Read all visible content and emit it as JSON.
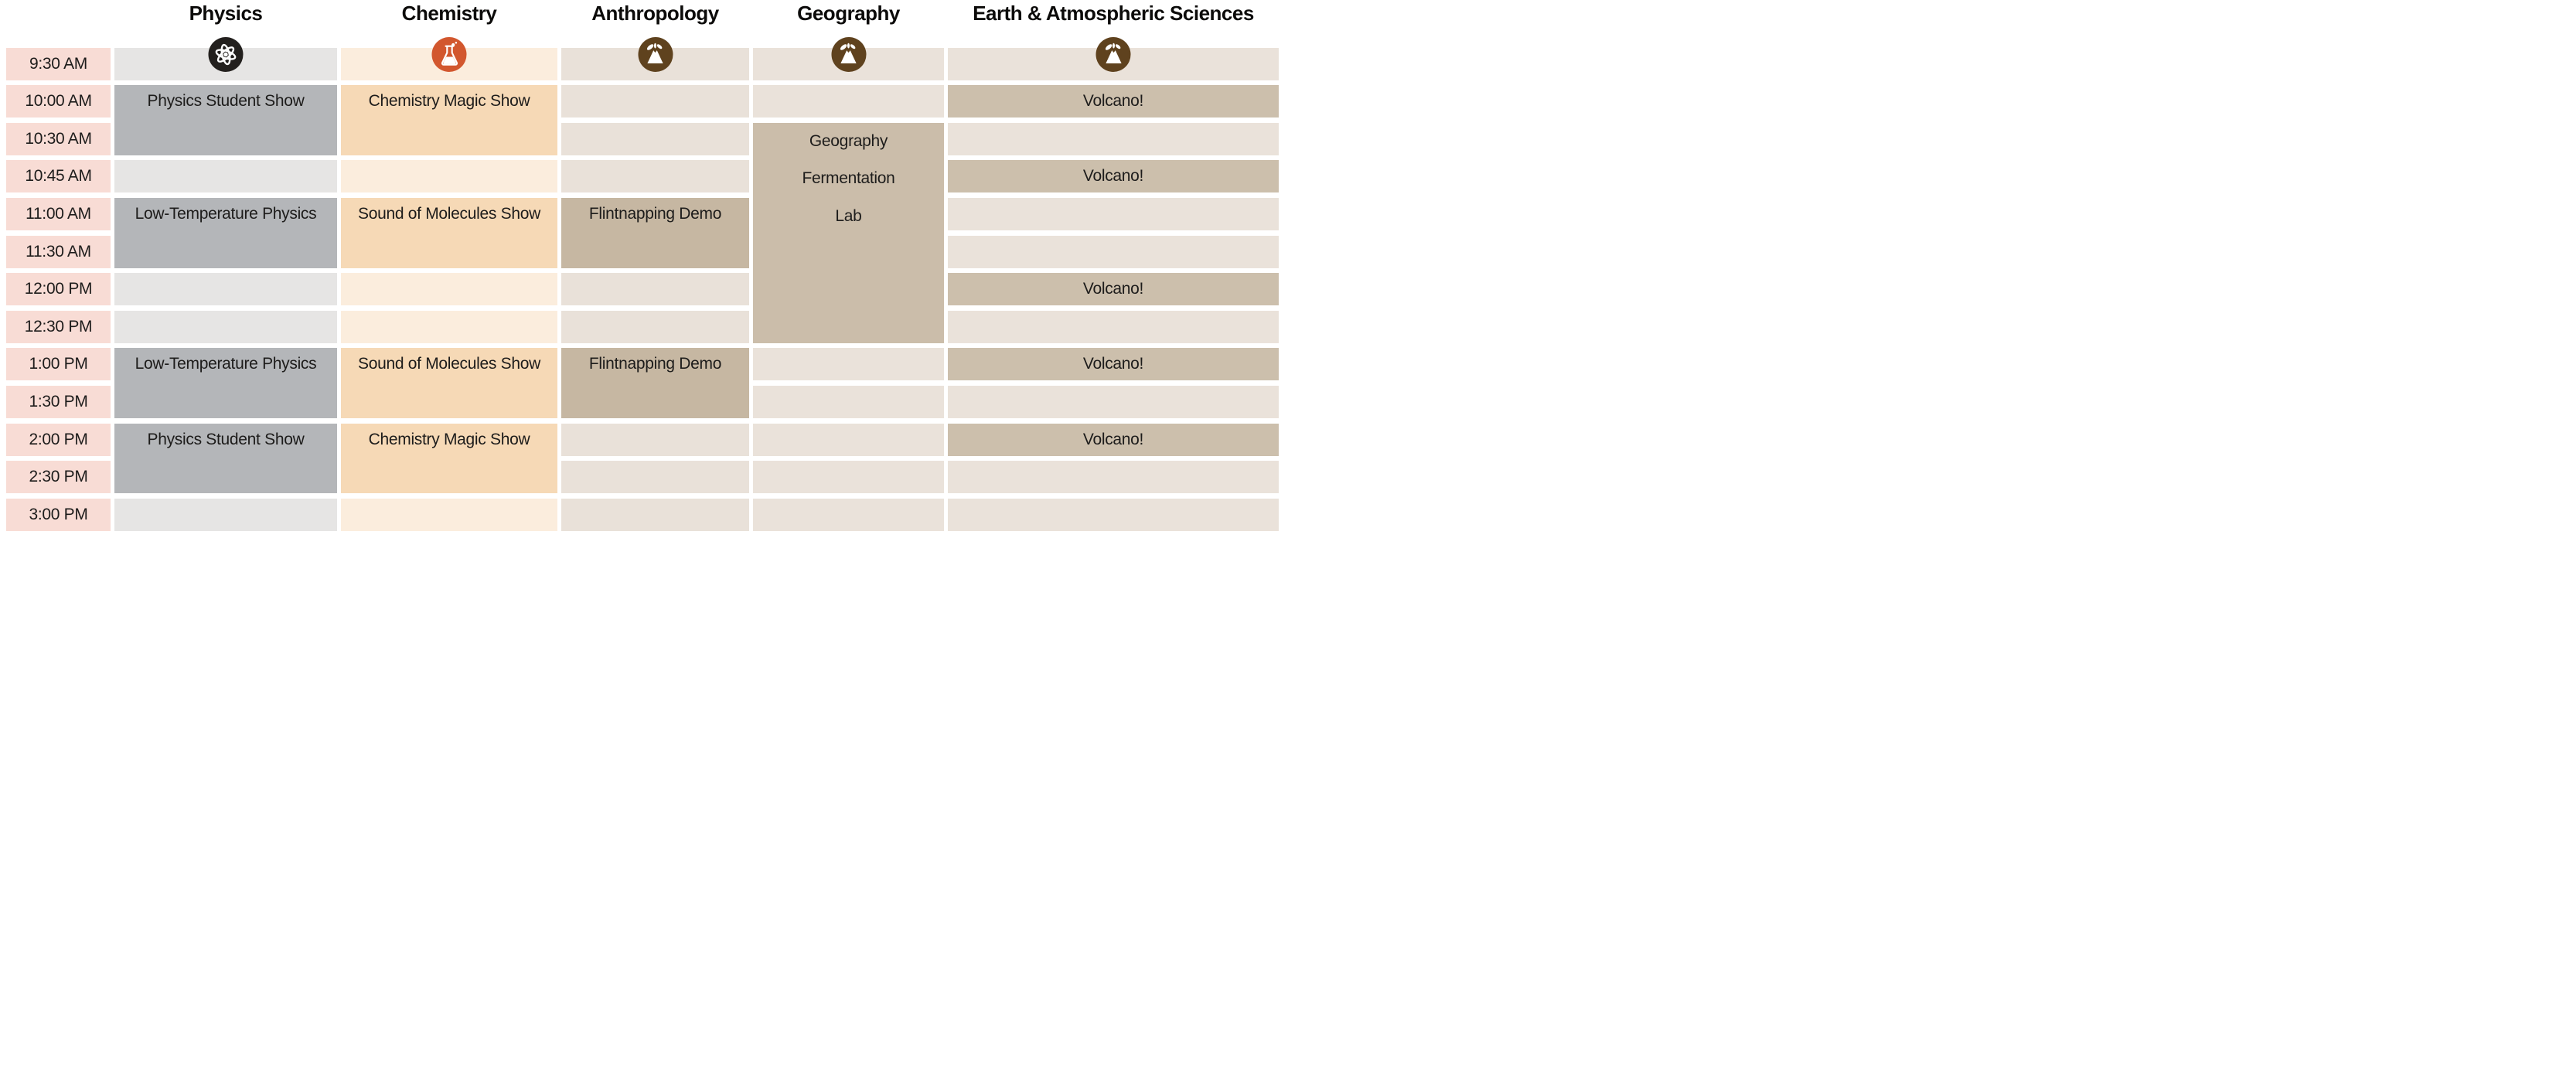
{
  "page": {
    "background": "#ffffff"
  },
  "palette": {
    "time_cell_bg": "#f8dcd5",
    "text_color": "#1d1c1b",
    "header_text_color": "#0c0b0a",
    "icon_glyph_color": "#ffffff"
  },
  "times": [
    "9:30 AM",
    "10:00 AM",
    "10:30 AM",
    "10:45 AM",
    "11:00 AM",
    "11:30 AM",
    "12:00 PM",
    "12:30 PM",
    "1:00 PM",
    "1:30 PM",
    "2:00 PM",
    "2:30 PM",
    "3:00 PM"
  ],
  "columns": [
    {
      "id": "physics",
      "label": "Physics",
      "icon": "atom-icon",
      "icon_bg": "#23201e",
      "empty_color": "#e6e5e4",
      "event_color": "#b4b6b9",
      "events": [
        {
          "label": "Physics Student Show",
          "row": 1,
          "span": 2
        },
        {
          "label": "Low-Temperature Physics",
          "row": 4,
          "span": 2
        },
        {
          "label": "Low-Temperature Physics",
          "row": 8,
          "span": 2
        },
        {
          "label": "Physics Student Show",
          "row": 10,
          "span": 2
        }
      ]
    },
    {
      "id": "chemistry",
      "label": "Chemistry",
      "icon": "flask-icon",
      "icon_bg": "#d2572e",
      "empty_color": "#fbeddd",
      "event_color": "#f6d9b6",
      "events": [
        {
          "label": "Chemistry Magic Show",
          "row": 1,
          "span": 2
        },
        {
          "label": "Sound of Molecules Show",
          "row": 4,
          "span": 2
        },
        {
          "label": "Sound of Molecules Show",
          "row": 8,
          "span": 2
        },
        {
          "label": "Chemistry Magic Show",
          "row": 10,
          "span": 2
        }
      ]
    },
    {
      "id": "anthropology",
      "label": "Anthropology",
      "icon": "volcano-icon",
      "icon_bg": "#5f421e",
      "empty_color": "#e9e1d9",
      "event_color": "#c6b7a2",
      "events": [
        {
          "label": "Flintnapping Demo",
          "row": 4,
          "span": 2
        },
        {
          "label": "Flintnapping Demo",
          "row": 8,
          "span": 2
        }
      ]
    },
    {
      "id": "geography",
      "label": "Geography",
      "icon": "volcano-icon",
      "icon_bg": "#5f421e",
      "empty_color": "#eae2da",
      "event_color": "#cbbdaa",
      "events": [
        {
          "label": "Geography\nFermentation\nLab",
          "row": 2,
          "span": 6
        }
      ]
    },
    {
      "id": "earth-atmospheric-sciences",
      "label": "Earth & Atmospheric Sciences",
      "icon": "volcano-icon",
      "icon_bg": "#5f421e",
      "empty_color": "#eae2da",
      "event_color": "#ccbfac",
      "events": [
        {
          "label": "Volcano!",
          "row": 1,
          "span": 1
        },
        {
          "label": "Volcano!",
          "row": 3,
          "span": 1
        },
        {
          "label": "Volcano!",
          "row": 6,
          "span": 1
        },
        {
          "label": "Volcano!",
          "row": 8,
          "span": 1
        },
        {
          "label": "Volcano!",
          "row": 10,
          "span": 1
        }
      ]
    }
  ]
}
